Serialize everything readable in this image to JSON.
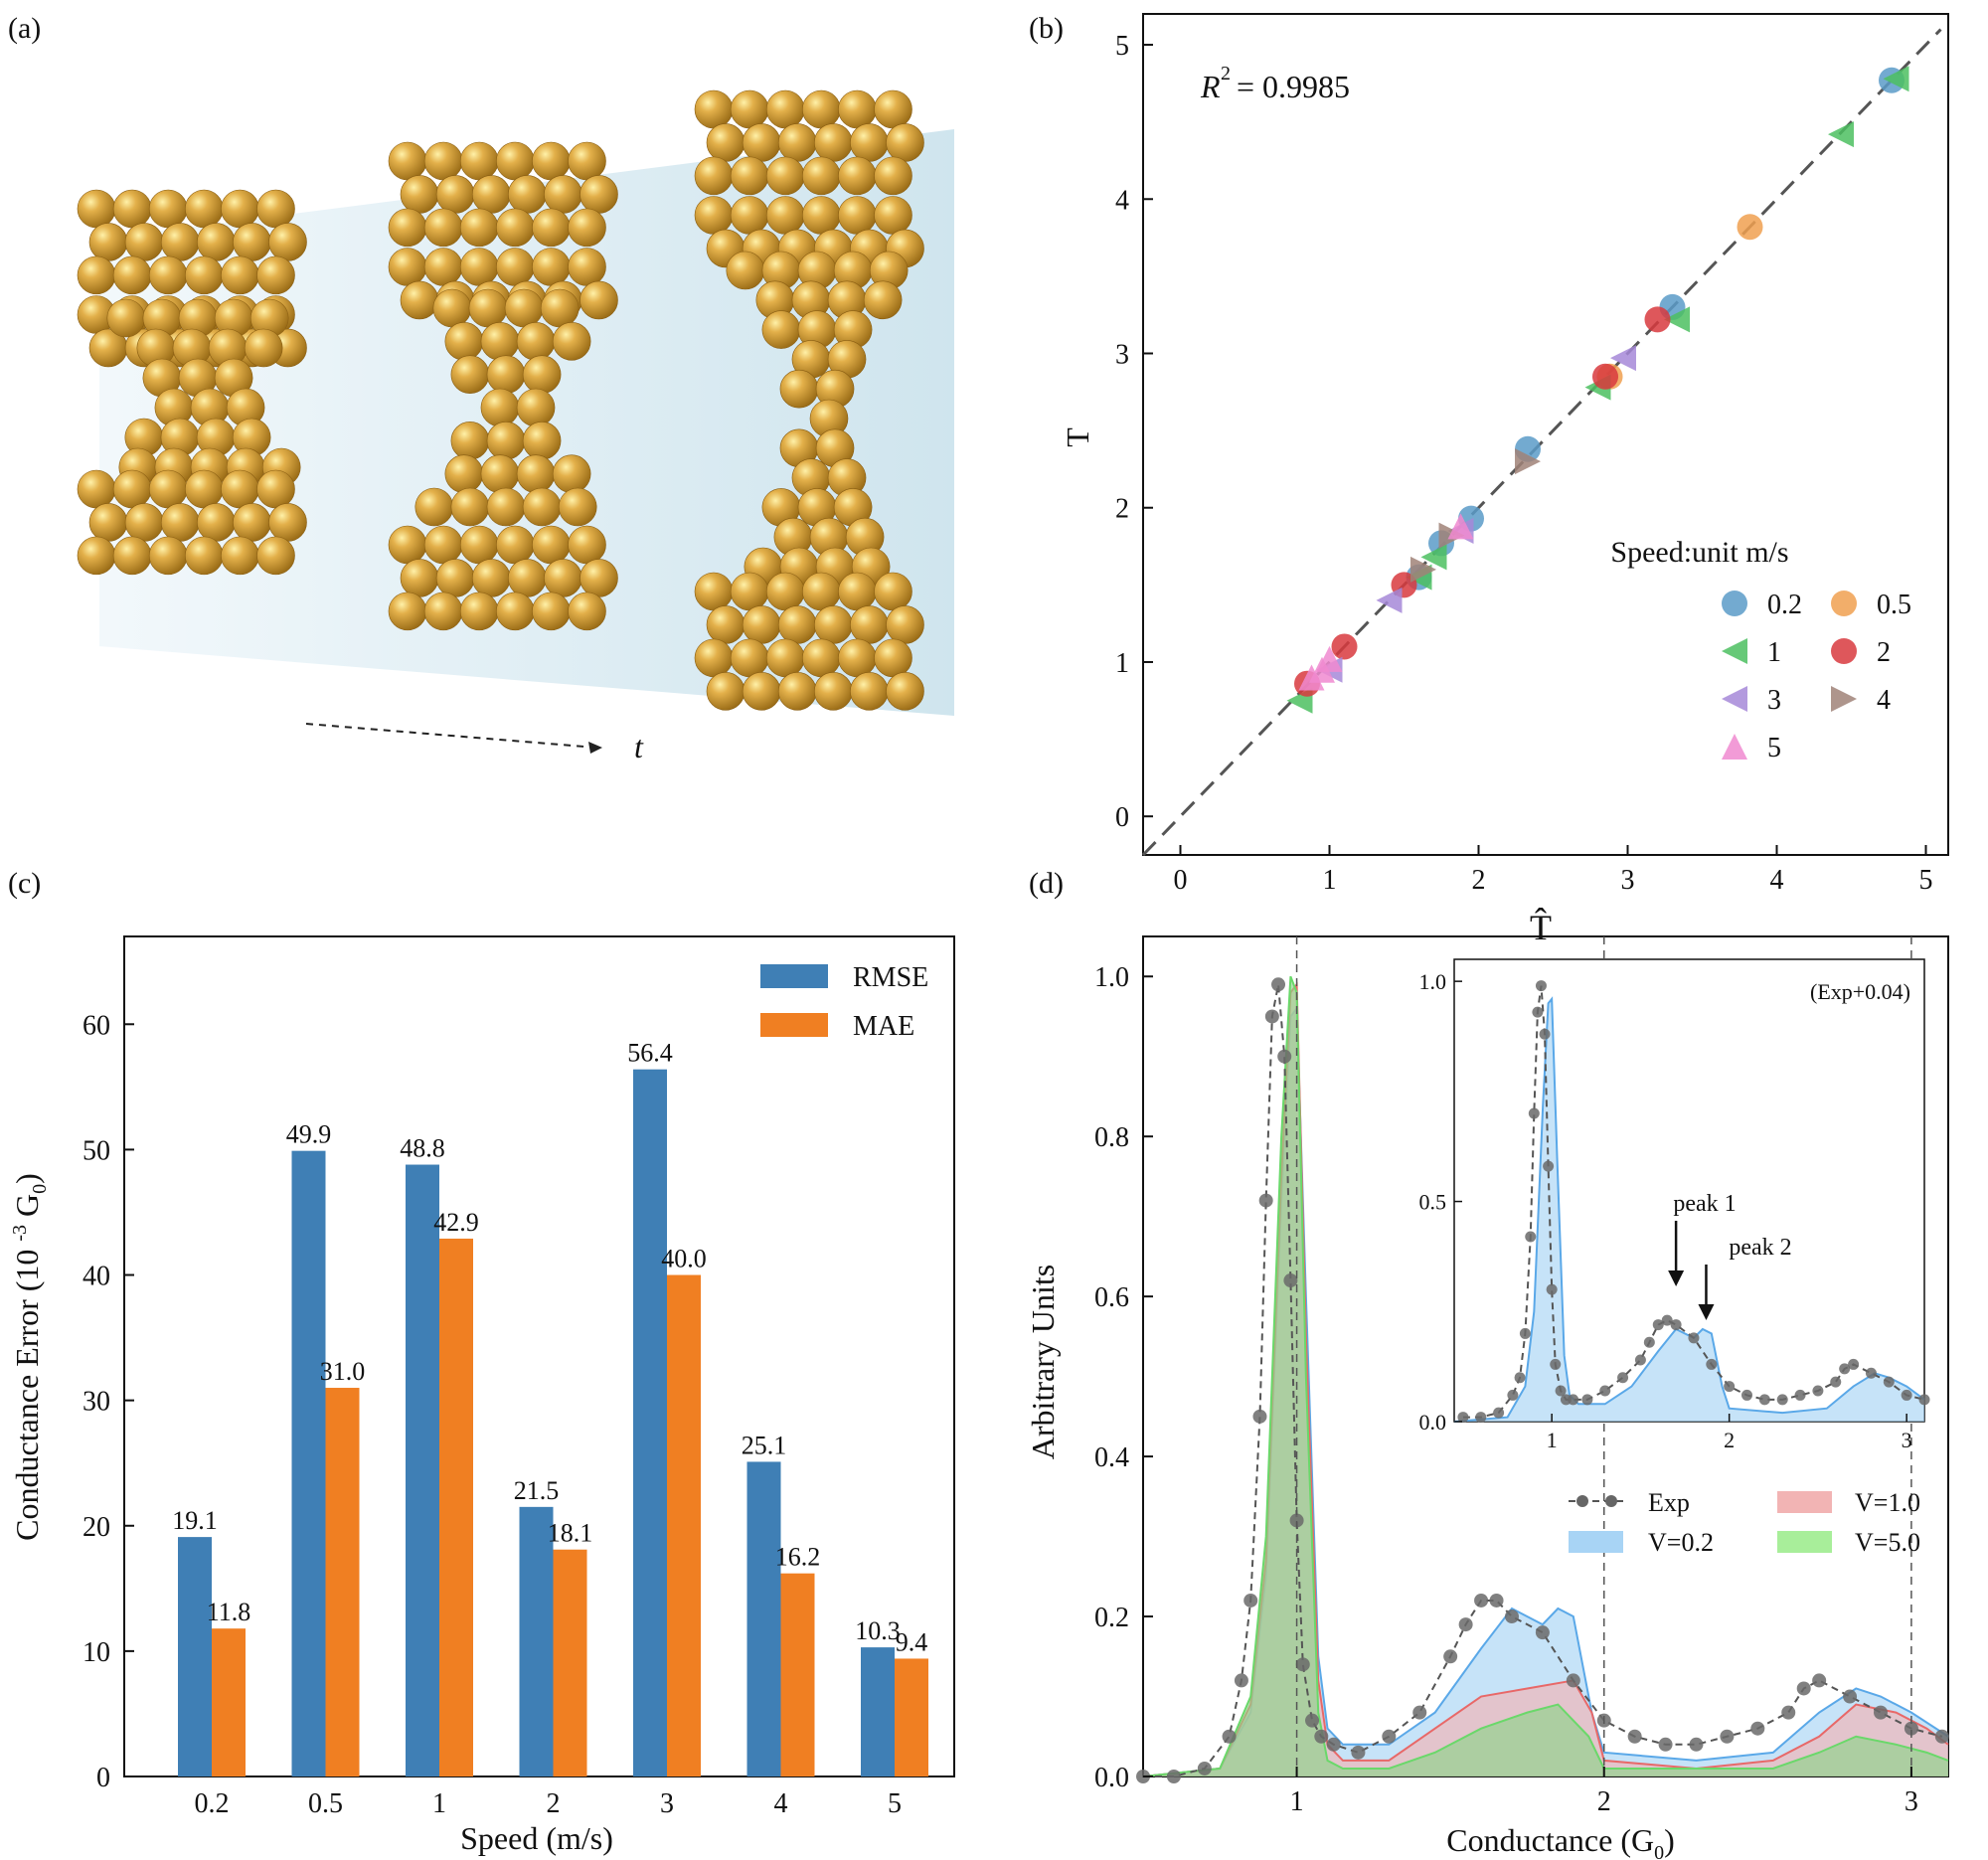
{
  "panel_a": {
    "label": "(a)",
    "time_label": "t",
    "colors": {
      "gold": "#d8a43a",
      "gold_dark": "#9c6e18",
      "highlight": "#fff3b0",
      "backdrop": "#cfe6f0"
    }
  },
  "panel_b": {
    "label": "(b)",
    "r2_prefix": "R",
    "r2_exp": "2",
    "r2_value": " = 0.9985",
    "xlabel": "T̂",
    "ylabel": "T",
    "xticks": [
      "0",
      "1",
      "2",
      "3",
      "4",
      "5"
    ],
    "yticks": [
      "0",
      "1",
      "2",
      "3",
      "4",
      "5"
    ],
    "legend_title": "Speed:unit m/s"
  },
  "panel_c": {
    "label": "(c)",
    "legend": [
      "RMSE",
      "MAE"
    ],
    "yticks": [
      "0",
      "10",
      "20",
      "30",
      "40",
      "50",
      "60"
    ],
    "ylabel_pre": "Conductance Error (10 ",
    "ylabel_sup": "-3",
    "ylabel_post": " G",
    "ylabel_sub": "0",
    "ylabel_end": ")"
  },
  "panel_d": {
    "label": "(d)",
    "ylabel": "Arbitrary Units",
    "xlabel_pre": "Conductance (G",
    "xlabel_sub": "0",
    "xlabel_post": ")",
    "xticks": [
      "1",
      "2",
      "3"
    ],
    "yticks": [
      "0.0",
      "0.2",
      "0.4",
      "0.6",
      "0.8",
      "1.0"
    ],
    "inset_label": "(Exp+0.04)",
    "inset_xticks": [
      "1",
      "2",
      "3"
    ],
    "inset_yticks": [
      "0.0",
      "0.5",
      "1.0"
    ],
    "peak1": "peak 1",
    "peak2": "peak 2",
    "legend": [
      "Exp",
      "V=1.0",
      "V=0.2",
      "V=5.0"
    ]
  },
  "chart_data": [
    {
      "type": "scatter",
      "panel": "b",
      "title": "",
      "xlabel": "T̂",
      "ylabel": "T",
      "xlim": [
        -0.25,
        5.15
      ],
      "ylim": [
        -0.25,
        5.2
      ],
      "r2": "R^2 = 0.9985",
      "identity_line": true,
      "series": [
        {
          "name": "0.2",
          "marker": "circle",
          "color": "#5b9bc8",
          "x": [
            4.77,
            3.3,
            1.95,
            1.75,
            1.6,
            2.33
          ],
          "y": [
            4.77,
            3.3,
            1.93,
            1.77,
            1.55,
            2.38
          ]
        },
        {
          "name": "0.5",
          "marker": "circle",
          "color": "#f0a050",
          "x": [
            3.82,
            2.88
          ],
          "y": [
            3.82,
            2.85
          ]
        },
        {
          "name": "1",
          "marker": "triangle-left",
          "color": "#4cbf60",
          "x": [
            4.43,
            4.8,
            3.33,
            2.8,
            1.7,
            1.6,
            0.8
          ],
          "y": [
            4.42,
            4.78,
            3.22,
            2.78,
            1.68,
            1.55,
            0.75
          ]
        },
        {
          "name": "2",
          "marker": "circle",
          "color": "#d83a3e",
          "x": [
            3.2,
            2.85,
            1.1,
            0.85,
            1.5
          ],
          "y": [
            3.22,
            2.85,
            1.1,
            0.86,
            1.5
          ]
        },
        {
          "name": "3",
          "marker": "triangle-left",
          "color": "#a688d8",
          "x": [
            2.97,
            1.88,
            1.4,
            1.0
          ],
          "y": [
            2.97,
            1.85,
            1.4,
            0.95
          ]
        },
        {
          "name": "4",
          "marker": "triangle-right",
          "color": "#a08278",
          "x": [
            2.33,
            1.82,
            1.63
          ],
          "y": [
            2.3,
            1.82,
            1.6
          ]
        },
        {
          "name": "5",
          "marker": "triangle-up",
          "color": "#f08ad0",
          "x": [
            1.88,
            0.95,
            1.0,
            0.88
          ],
          "y": [
            1.88,
            0.95,
            1.02,
            0.9
          ]
        }
      ]
    },
    {
      "type": "bar",
      "panel": "c",
      "title": "",
      "xlabel": "Speed (m/s)",
      "ylabel": "Conductance Error (10^-3 G0)",
      "ylim": [
        0,
        67
      ],
      "categories": [
        "0.2",
        "0.5",
        "1",
        "2",
        "3",
        "4",
        "5"
      ],
      "series": [
        {
          "name": "RMSE",
          "color": "#3f7fb5",
          "values": [
            19.1,
            49.9,
            48.8,
            21.5,
            56.4,
            25.1,
            10.3
          ],
          "labels": [
            "19.1",
            "49.9",
            "48.8",
            "21.5",
            "56.4",
            "25.1",
            "10.3"
          ]
        },
        {
          "name": "MAE",
          "color": "#f07f22",
          "values": [
            11.8,
            31.0,
            42.9,
            18.1,
            40.0,
            16.2,
            9.4
          ],
          "labels": [
            "11.8",
            "31.0",
            "42.9",
            "18.1",
            "40.0",
            "16.2",
            "9.4"
          ]
        }
      ]
    },
    {
      "type": "area",
      "panel": "d",
      "title": "",
      "xlabel": "Conductance (G0)",
      "ylabel": "Arbitrary Units",
      "xlim": [
        0.5,
        3.12
      ],
      "ylim": [
        0,
        1.05
      ],
      "vlines": [
        1,
        2,
        3
      ],
      "series": [
        {
          "name": "V=0.2",
          "color": "#5aa8e8",
          "fill": "#a8d4f5",
          "x": [
            0.5,
            0.75,
            0.85,
            0.9,
            0.95,
            0.98,
            1.0,
            1.03,
            1.07,
            1.1,
            1.15,
            1.3,
            1.45,
            1.6,
            1.7,
            1.8,
            1.85,
            1.9,
            1.96,
            2.0,
            2.3,
            2.55,
            2.7,
            2.82,
            2.9,
            3.0,
            3.12
          ],
          "y": [
            0,
            0.01,
            0.08,
            0.25,
            0.72,
            0.95,
            0.96,
            0.6,
            0.15,
            0.06,
            0.04,
            0.04,
            0.08,
            0.16,
            0.21,
            0.19,
            0.21,
            0.2,
            0.08,
            0.03,
            0.02,
            0.03,
            0.08,
            0.11,
            0.1,
            0.08,
            0.05
          ]
        },
        {
          "name": "V=1.0",
          "color": "#e86868",
          "fill": "#f2b4b4",
          "x": [
            0.5,
            0.75,
            0.85,
            0.9,
            0.95,
            0.98,
            1.0,
            1.03,
            1.07,
            1.1,
            1.15,
            1.3,
            1.45,
            1.6,
            1.75,
            1.9,
            1.96,
            2.0,
            2.3,
            2.55,
            2.7,
            2.82,
            2.95,
            3.05,
            3.12
          ],
          "y": [
            0,
            0.01,
            0.09,
            0.27,
            0.75,
            0.98,
            0.99,
            0.55,
            0.12,
            0.04,
            0.02,
            0.02,
            0.06,
            0.1,
            0.11,
            0.12,
            0.08,
            0.02,
            0.01,
            0.02,
            0.05,
            0.09,
            0.08,
            0.06,
            0.04
          ]
        },
        {
          "name": "V=5.0",
          "color": "#6ad86a",
          "fill": "#8fd48a",
          "x": [
            0.5,
            0.75,
            0.85,
            0.9,
            0.95,
            0.98,
            1.0,
            1.03,
            1.07,
            1.1,
            1.15,
            1.3,
            1.45,
            1.6,
            1.75,
            1.85,
            1.95,
            2.0,
            2.3,
            2.55,
            2.7,
            2.82,
            2.95,
            3.05,
            3.12
          ],
          "y": [
            0,
            0.01,
            0.1,
            0.3,
            0.8,
            1.0,
            0.98,
            0.5,
            0.08,
            0.02,
            0.01,
            0.01,
            0.03,
            0.06,
            0.08,
            0.09,
            0.05,
            0.01,
            0.01,
            0.01,
            0.03,
            0.05,
            0.04,
            0.03,
            0.02
          ]
        },
        {
          "name": "Exp",
          "color": "#555555",
          "marker": "circle",
          "dashed": true,
          "x": [
            0.5,
            0.6,
            0.7,
            0.78,
            0.82,
            0.85,
            0.88,
            0.9,
            0.92,
            0.94,
            0.96,
            0.98,
            1.0,
            1.02,
            1.05,
            1.08,
            1.12,
            1.2,
            1.3,
            1.4,
            1.5,
            1.55,
            1.6,
            1.65,
            1.7,
            1.8,
            1.9,
            2.0,
            2.1,
            2.2,
            2.3,
            2.4,
            2.5,
            2.6,
            2.65,
            2.7,
            2.8,
            2.9,
            3.0,
            3.1
          ],
          "y": [
            0,
            0.0,
            0.01,
            0.05,
            0.12,
            0.22,
            0.45,
            0.72,
            0.95,
            0.99,
            0.9,
            0.62,
            0.32,
            0.14,
            0.07,
            0.05,
            0.04,
            0.03,
            0.05,
            0.08,
            0.15,
            0.19,
            0.22,
            0.22,
            0.2,
            0.18,
            0.12,
            0.07,
            0.05,
            0.04,
            0.04,
            0.05,
            0.06,
            0.08,
            0.11,
            0.12,
            0.1,
            0.08,
            0.06,
            0.05
          ]
        }
      ],
      "inset": {
        "xlim": [
          0.45,
          3.1
        ],
        "ylim": [
          0,
          1.05
        ],
        "label": "(Exp+0.04)",
        "annotations": [
          {
            "text": "peak 1",
            "x": 1.7
          },
          {
            "text": "peak 2",
            "x": 1.87
          }
        ],
        "series": [
          {
            "name": "V=0.2",
            "color": "#5aa8e8",
            "fill": "#a8d4f5",
            "x": [
              0.45,
              0.75,
              0.85,
              0.9,
              0.95,
              0.98,
              1.0,
              1.03,
              1.07,
              1.1,
              1.15,
              1.3,
              1.45,
              1.6,
              1.7,
              1.8,
              1.85,
              1.9,
              1.96,
              2.0,
              2.3,
              2.55,
              2.7,
              2.82,
              2.9,
              3.0,
              3.1
            ],
            "y": [
              0,
              0.01,
              0.08,
              0.25,
              0.72,
              0.95,
              0.96,
              0.6,
              0.15,
              0.06,
              0.04,
              0.04,
              0.08,
              0.16,
              0.21,
              0.19,
              0.21,
              0.2,
              0.08,
              0.03,
              0.02,
              0.03,
              0.08,
              0.11,
              0.1,
              0.08,
              0.05
            ]
          },
          {
            "name": "Exp+0.04",
            "color": "#555555",
            "marker": "circle",
            "dashed": true,
            "x": [
              0.5,
              0.6,
              0.7,
              0.78,
              0.82,
              0.85,
              0.88,
              0.9,
              0.92,
              0.94,
              0.96,
              0.98,
              1.0,
              1.02,
              1.05,
              1.08,
              1.12,
              1.2,
              1.3,
              1.4,
              1.5,
              1.55,
              1.6,
              1.65,
              1.7,
              1.8,
              1.9,
              2.0,
              2.1,
              2.2,
              2.3,
              2.4,
              2.5,
              2.6,
              2.65,
              2.7,
              2.8,
              2.9,
              3.0,
              3.1
            ],
            "y": [
              0.01,
              0.01,
              0.02,
              0.06,
              0.1,
              0.2,
              0.42,
              0.7,
              0.93,
              0.99,
              0.88,
              0.58,
              0.3,
              0.13,
              0.07,
              0.05,
              0.05,
              0.05,
              0.07,
              0.1,
              0.14,
              0.18,
              0.22,
              0.23,
              0.22,
              0.19,
              0.13,
              0.08,
              0.06,
              0.05,
              0.05,
              0.06,
              0.07,
              0.09,
              0.12,
              0.13,
              0.11,
              0.09,
              0.06,
              0.05
            ]
          }
        ]
      }
    }
  ]
}
